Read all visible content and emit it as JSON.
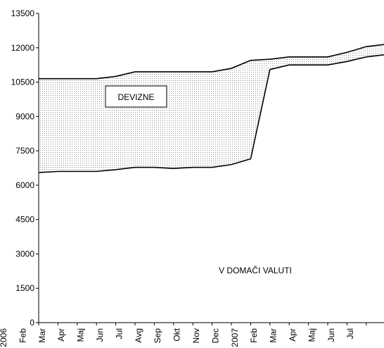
{
  "chart_data": {
    "type": "area",
    "stacked": true,
    "categories": [
      "2006",
      "Feb",
      "Mar",
      "Apr",
      "Maj",
      "Jun",
      "Jul",
      "Avg",
      "Sep",
      "Okt",
      "Nov",
      "Dec",
      "2007",
      "Feb",
      "Mar",
      "Apr",
      "Maj",
      "Jun",
      "Jul"
    ],
    "series": [
      {
        "name": "V DOMAČI VALUTI",
        "color": "#ffffff",
        "values": [
          6550,
          6600,
          6600,
          6600,
          6680,
          6780,
          6780,
          6730,
          6780,
          6780,
          6900,
          7150,
          11050,
          11250,
          11250,
          11250,
          11400,
          11600,
          11700
        ]
      },
      {
        "name": "DEVIZNE",
        "color": "#999999",
        "values": [
          4100,
          4050,
          4050,
          4050,
          4070,
          4170,
          4170,
          4220,
          4170,
          4170,
          4200,
          4300,
          450,
          350,
          350,
          350,
          400,
          450,
          450
        ]
      }
    ],
    "ylim": [
      0,
      13500
    ],
    "yticks": [
      0,
      1500,
      3000,
      4500,
      6000,
      7500,
      9000,
      10500,
      12000,
      13500
    ],
    "grid": false
  }
}
